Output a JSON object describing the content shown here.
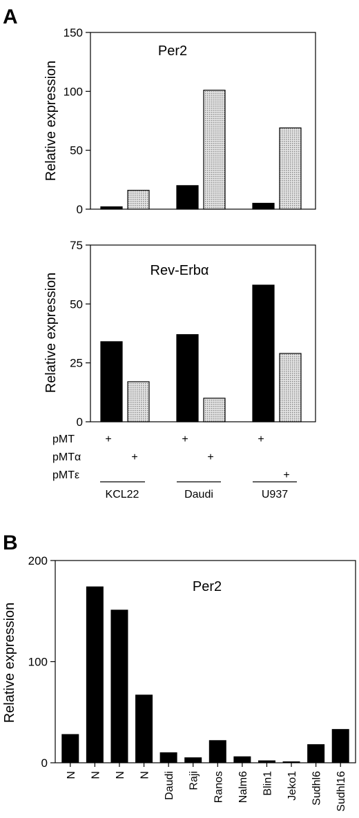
{
  "panels": {
    "a_label": "A",
    "b_label": "B"
  },
  "colors": {
    "black_bar": "#000000",
    "grey_bar": "#cfcfcf"
  },
  "chart_data": [
    {
      "id": "A-per2",
      "type": "bar",
      "title": "Per2",
      "ylabel": "Relative expression",
      "ylim": [
        0,
        150
      ],
      "yticks": [
        0,
        50,
        100,
        150
      ],
      "groups": [
        "KCL22",
        "Daudi",
        "U937"
      ],
      "series": [
        {
          "name": "",
          "style": "black",
          "values": [
            2,
            20,
            5
          ]
        },
        {
          "name": "",
          "style": "grey",
          "values": [
            16,
            101,
            69
          ]
        }
      ]
    },
    {
      "id": "A-reverb",
      "type": "bar",
      "title": "Rev-Erbα",
      "ylabel": "Relative expression",
      "ylim": [
        0,
        75
      ],
      "yticks": [
        0,
        25,
        50,
        75
      ],
      "groups": [
        "KCL22",
        "Daudi",
        "U937"
      ],
      "series": [
        {
          "name": "",
          "style": "black",
          "values": [
            34,
            37,
            58
          ]
        },
        {
          "name": "",
          "style": "grey",
          "values": [
            17,
            10,
            29
          ]
        }
      ]
    },
    {
      "id": "B-per2",
      "type": "bar",
      "title": "Per2",
      "ylabel": "Relative expression",
      "ylim": [
        0,
        200
      ],
      "yticks": [
        0,
        100,
        200
      ],
      "categories": [
        "N",
        "N",
        "N",
        "N",
        "Daudi",
        "Raji",
        "Ranos",
        "Nalm6",
        "Blin1",
        "Jeko1",
        "Sudhl6",
        "Sudhl16"
      ],
      "values": [
        28,
        174,
        151,
        67,
        10,
        5,
        22,
        6,
        2,
        1,
        18,
        33
      ]
    }
  ],
  "legend_rows": [
    {
      "label": "pMT",
      "marks": [
        "+",
        "+",
        "+"
      ]
    },
    {
      "label": "pMTα",
      "marks": [
        "+",
        "+"
      ]
    },
    {
      "label": "pMTε",
      "marks": [
        "+"
      ]
    }
  ],
  "group_labels": [
    "KCL22",
    "Daudi",
    "U937"
  ]
}
